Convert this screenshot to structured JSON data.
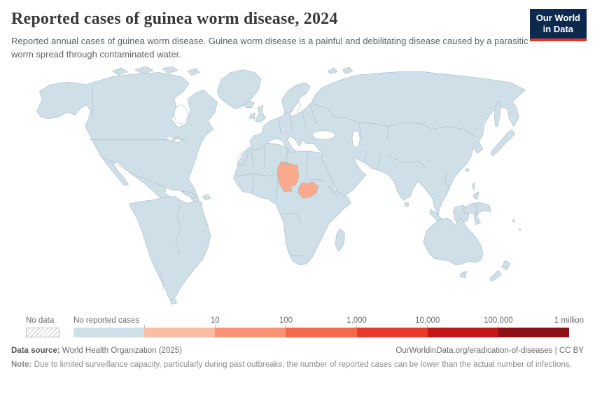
{
  "header": {
    "title": "Reported cases of guinea worm disease, 2024",
    "subtitle": "Reported annual cases of guinea worm disease. Guinea worm disease is a painful and debilitating disease caused by a parasitic worm spread through contaminated water.",
    "logo": {
      "line1": "Our World",
      "line2": "in Data"
    }
  },
  "colors": {
    "logo_bg": "#0d2a4e",
    "logo_accent": "#dc3a2c",
    "land": "#cfdfe8",
    "land_border": "#a6b7c0",
    "ocean": "#ffffff",
    "highlight": "#faa98c",
    "hatch_line": "#d8d8d8"
  },
  "map": {
    "highlighted_countries": [
      {
        "name": "Chad",
        "color": "#faa98c"
      },
      {
        "name": "South Sudan",
        "color": "#faa98c"
      }
    ],
    "no_data_regions": [
      {
        "name": "Western Sahara",
        "style": "hatched"
      }
    ]
  },
  "legend": {
    "no_data_label": "No data",
    "bins": [
      {
        "label": "No reported cases",
        "color": "#cfdfe8"
      },
      {
        "label": "10",
        "color": "#f9bda4"
      },
      {
        "label": "100",
        "color": "#fa9375"
      },
      {
        "label": "1,000",
        "color": "#f4694b"
      },
      {
        "label": "10,000",
        "color": "#e63b2d"
      },
      {
        "label": "100,000",
        "color": "#c3161b"
      },
      {
        "label": "1 million",
        "color": "#8e1117"
      }
    ]
  },
  "footer": {
    "source_label": "Data source:",
    "source": "World Health Organization (2025)",
    "link": "OurWorldinData.org/eradication-of-diseases | CC BY",
    "note_label": "Note:",
    "note": "Due to limited surveillance capacity, particularly during past outbreaks, the number of reported cases can be lower than the actual number of infections."
  },
  "chart_data": {
    "type": "choropleth_map",
    "title": "Reported cases of guinea worm disease, 2024",
    "legend_categories": [
      "No data",
      "No reported cases"
    ],
    "scale_ticks": [
      "10",
      "100",
      "1,000",
      "10,000",
      "100,000",
      "1 million"
    ],
    "scale_colors": [
      "#f9bda4",
      "#fa9375",
      "#f4694b",
      "#e63b2d",
      "#c3161b",
      "#8e1117"
    ],
    "default_fill": "No reported cases",
    "highlighted_entities": [
      {
        "entity": "Chad",
        "color": "#faa98c"
      },
      {
        "entity": "South Sudan",
        "color": "#faa98c"
      }
    ],
    "no_data_entities": [
      "Western Sahara"
    ]
  }
}
